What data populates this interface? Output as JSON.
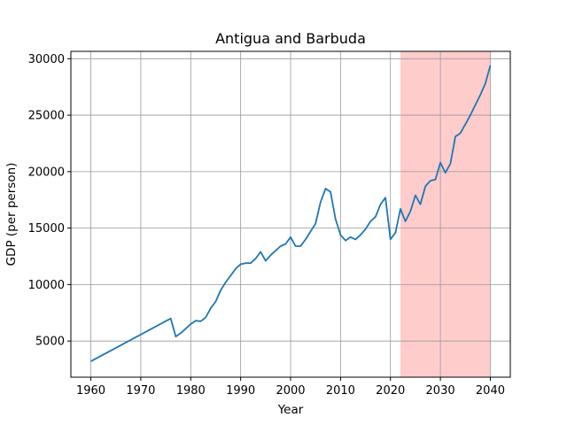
{
  "chart_data": {
    "type": "line",
    "title": "Antigua and Barbuda",
    "xlabel": "Year",
    "ylabel": "GDP (per person)",
    "xlim": [
      1956,
      2044
    ],
    "ylim": [
      1800,
      30650
    ],
    "xticks": [
      1960,
      1970,
      1980,
      1990,
      2000,
      2010,
      2020,
      2030,
      2040
    ],
    "yticks": [
      5000,
      10000,
      15000,
      20000,
      25000,
      30000
    ],
    "grid": true,
    "highlight": {
      "x_start": 2022,
      "x_end": 2040,
      "color": "#ffcccc"
    },
    "series": [
      {
        "color": "#1f77b4",
        "x": [
          1960,
          1976,
          1977,
          1978,
          1979,
          1980,
          1981,
          1982,
          1983,
          1984,
          1985,
          1986,
          1987,
          1988,
          1989,
          1990,
          1991,
          1992,
          1993,
          1994,
          1995,
          1996,
          1997,
          1998,
          1999,
          2000,
          2001,
          2002,
          2003,
          2004,
          2005,
          2006,
          2007,
          2008,
          2009,
          2010,
          2011,
          2012,
          2013,
          2014,
          2015,
          2016,
          2017,
          2018,
          2019,
          2020,
          2021,
          2022,
          2023,
          2024,
          2025,
          2026,
          2027,
          2028,
          2029,
          2030,
          2031,
          2032,
          2033,
          2034,
          2035,
          2036,
          2037,
          2038,
          2039,
          2040
        ],
        "y": [
          3200,
          7000,
          5400,
          5700,
          6100,
          6500,
          6800,
          6750,
          7100,
          7900,
          8500,
          9500,
          10200,
          10800,
          11400,
          11800,
          11900,
          11900,
          12300,
          12900,
          12100,
          12600,
          13000,
          13400,
          13600,
          14200,
          13400,
          13400,
          14000,
          14700,
          15400,
          17300,
          18500,
          18200,
          15800,
          14400,
          13900,
          14200,
          14000,
          14400,
          14900,
          15600,
          16000,
          17100,
          17700,
          14000,
          14600,
          16700,
          15600,
          16500,
          17900,
          17100,
          18700,
          19200,
          19300,
          20800,
          19900,
          20700,
          23100,
          23400,
          24200,
          25000,
          25900,
          26800,
          27800,
          29400
        ]
      }
    ]
  }
}
